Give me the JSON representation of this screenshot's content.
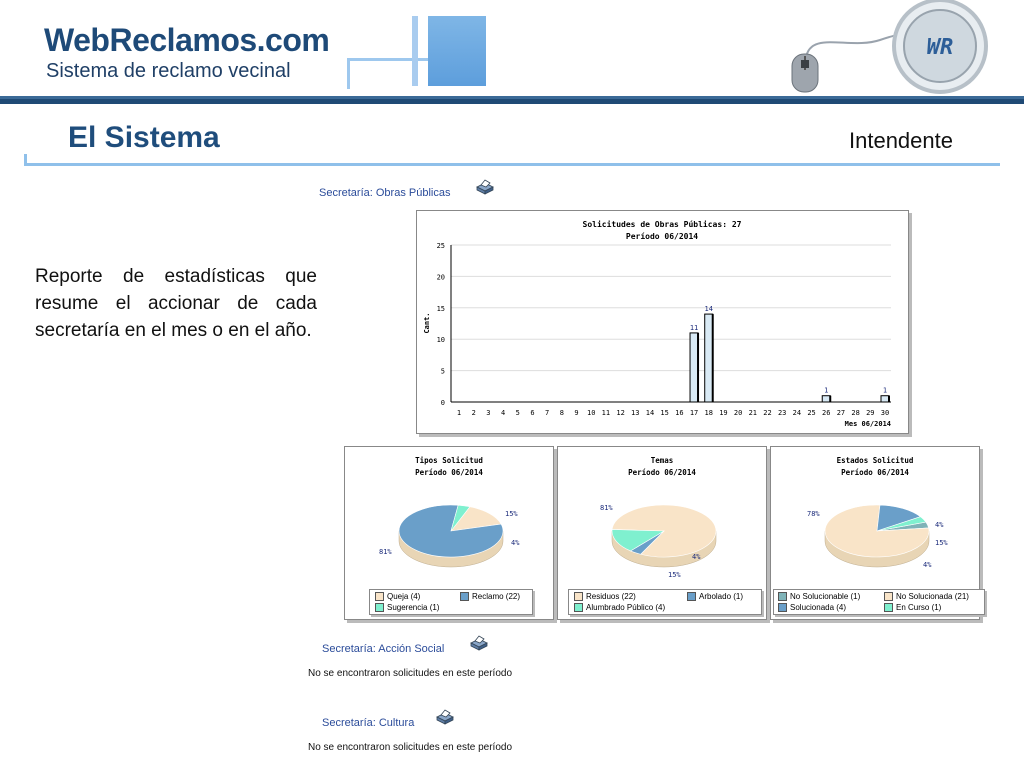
{
  "header": {
    "logo_title": "WebReclamos",
    "logo_suffix": ".com",
    "logo_subtitle": "Sistema de reclamo vecinal",
    "badge_text": "WR"
  },
  "page": {
    "section_title": "El Sistema",
    "role_label": "Intendente",
    "intro_text": "Reporte de estadísticas que resume el accionar de cada secretaría en el mes o en el año."
  },
  "sections": [
    {
      "label": "Secretaría: Obras Públicas"
    },
    {
      "label": "Secretaría: Acción Social",
      "message": "No se encontraron solicitudes en este período"
    },
    {
      "label": "Secretaría: Cultura",
      "message": "No se encontraron solicitudes en este período"
    }
  ],
  "colors": {
    "queja": "#f9e4c8",
    "reclamo": "#6a9fc9",
    "sugerencia": "#7ff0cf",
    "axis": "#000000"
  },
  "chart_data": [
    {
      "type": "bar",
      "title": "Solicitudes de Obras Públicas: 27",
      "subtitle": "Período 06/2014",
      "ylabel": "Cant.",
      "xlabel": "Mes 06/2014",
      "categories": [
        "1",
        "2",
        "3",
        "4",
        "5",
        "6",
        "7",
        "8",
        "9",
        "10",
        "11",
        "12",
        "13",
        "14",
        "15",
        "16",
        "17",
        "18",
        "19",
        "20",
        "21",
        "22",
        "23",
        "24",
        "25",
        "26",
        "27",
        "28",
        "29",
        "30"
      ],
      "values": [
        0,
        0,
        0,
        0,
        0,
        0,
        0,
        0,
        0,
        0,
        0,
        0,
        0,
        0,
        0,
        0,
        11,
        14,
        0,
        0,
        0,
        0,
        0,
        0,
        0,
        1,
        0,
        0,
        0,
        1
      ],
      "yticks": [
        0,
        5,
        10,
        15,
        20,
        25
      ],
      "ylim": [
        0,
        25
      ],
      "grid": true
    },
    {
      "type": "pie",
      "title": "Tipos Solicitud",
      "subtitle": "Período 06/2014",
      "labels": [
        "Queja (4)",
        "Reclamo (22)",
        "Sugerencia (1)"
      ],
      "values": [
        4,
        22,
        1
      ],
      "percent_labels": [
        "15%",
        "81%",
        "4%"
      ],
      "colors": [
        "#f9e4c8",
        "#6a9fc9",
        "#7ff0cf"
      ]
    },
    {
      "type": "pie",
      "title": "Temas",
      "subtitle": "Período 06/2014",
      "labels": [
        "Residuos (22)",
        "Arbolado (1)",
        "Alumbrado Público (4)"
      ],
      "values": [
        22,
        1,
        4
      ],
      "percent_labels": [
        "81%",
        "4%",
        "15%"
      ],
      "colors": [
        "#f9e4c8",
        "#6a9fc9",
        "#7ff0cf"
      ]
    },
    {
      "type": "pie",
      "title": "Estados Solicitud",
      "subtitle": "Período 06/2014",
      "labels": [
        "No Solucionable (1)",
        "No Solucionada (21)",
        "Solucionada (4)",
        "En Curso (1)"
      ],
      "values": [
        1,
        21,
        4,
        1
      ],
      "percent_labels": [
        "4%",
        "78%",
        "15%",
        "4%"
      ],
      "colors": [
        "#7fb3b8",
        "#f9e4c8",
        "#6a9fc9",
        "#7ff0cf"
      ]
    }
  ]
}
